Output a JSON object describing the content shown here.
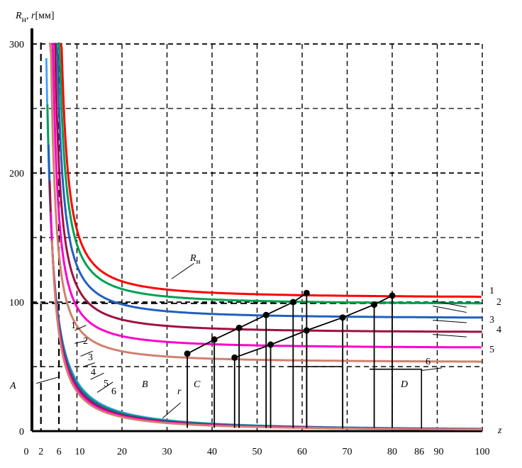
{
  "chart_data": {
    "type": "line",
    "ylabel": "R_H, r [мм]",
    "ylabel_parts": {
      "main": "R",
      "sub": "н",
      "rest": ", r",
      "unit": "[мм]"
    },
    "xlabel": "z",
    "xlim": [
      0,
      100
    ],
    "ylim": [
      0,
      300
    ],
    "x_ticks": [
      "0",
      "2",
      "6",
      "10",
      "20",
      "30",
      "40",
      "50",
      "60",
      "70",
      "80",
      "86",
      "90",
      "100"
    ],
    "y_ticks": [
      "0",
      "100",
      "200",
      "300"
    ],
    "grid": true,
    "series": [
      {
        "name": "1",
        "color": "#ff0000",
        "asymptote": 103,
        "k": 230,
        "z0": 2.5
      },
      {
        "name": "2",
        "color": "#00a050",
        "asymptote": 98,
        "k": 220,
        "z0": 2.5
      },
      {
        "name": "3",
        "color": "#2060c0",
        "asymptote": 87,
        "k": 210,
        "z0": 2.5
      },
      {
        "name": "4",
        "color": "#a01040",
        "asymptote": 76,
        "k": 200,
        "z0": 2.5
      },
      {
        "name": "5",
        "color": "#ff00cc",
        "asymptote": 64,
        "k": 190,
        "z0": 2.5
      },
      {
        "name": "6",
        "color": "#d08070",
        "asymptote": 53,
        "k": 180,
        "z0": 2.5
      }
    ],
    "r_series": [
      {
        "name": "1",
        "color": "#40a0ff",
        "k": 170
      },
      {
        "name": "2",
        "color": "#00a050",
        "k": 160
      },
      {
        "name": "3",
        "color": "#2060c0",
        "k": 150
      },
      {
        "name": "4",
        "color": "#a01040",
        "k": 140
      },
      {
        "name": "5",
        "color": "#ff00cc",
        "k": 130
      },
      {
        "name": "6",
        "color": "#d08070",
        "k": 120
      }
    ],
    "rh_label": "R_H",
    "r_label": "r",
    "region_labels": [
      "A",
      "B",
      "C",
      "D"
    ],
    "curve_numbers": [
      "1",
      "2",
      "3",
      "4",
      "5",
      "6"
    ],
    "points_line1": [
      [
        34.5,
        60
      ],
      [
        40.5,
        71
      ],
      [
        46,
        80
      ],
      [
        52,
        90
      ],
      [
        58,
        100
      ],
      [
        61,
        107
      ]
    ],
    "points_line2": [
      [
        45,
        57
      ],
      [
        53,
        67
      ],
      [
        61,
        78
      ],
      [
        69,
        88
      ],
      [
        76,
        98
      ],
      [
        80,
        105
      ]
    ]
  }
}
